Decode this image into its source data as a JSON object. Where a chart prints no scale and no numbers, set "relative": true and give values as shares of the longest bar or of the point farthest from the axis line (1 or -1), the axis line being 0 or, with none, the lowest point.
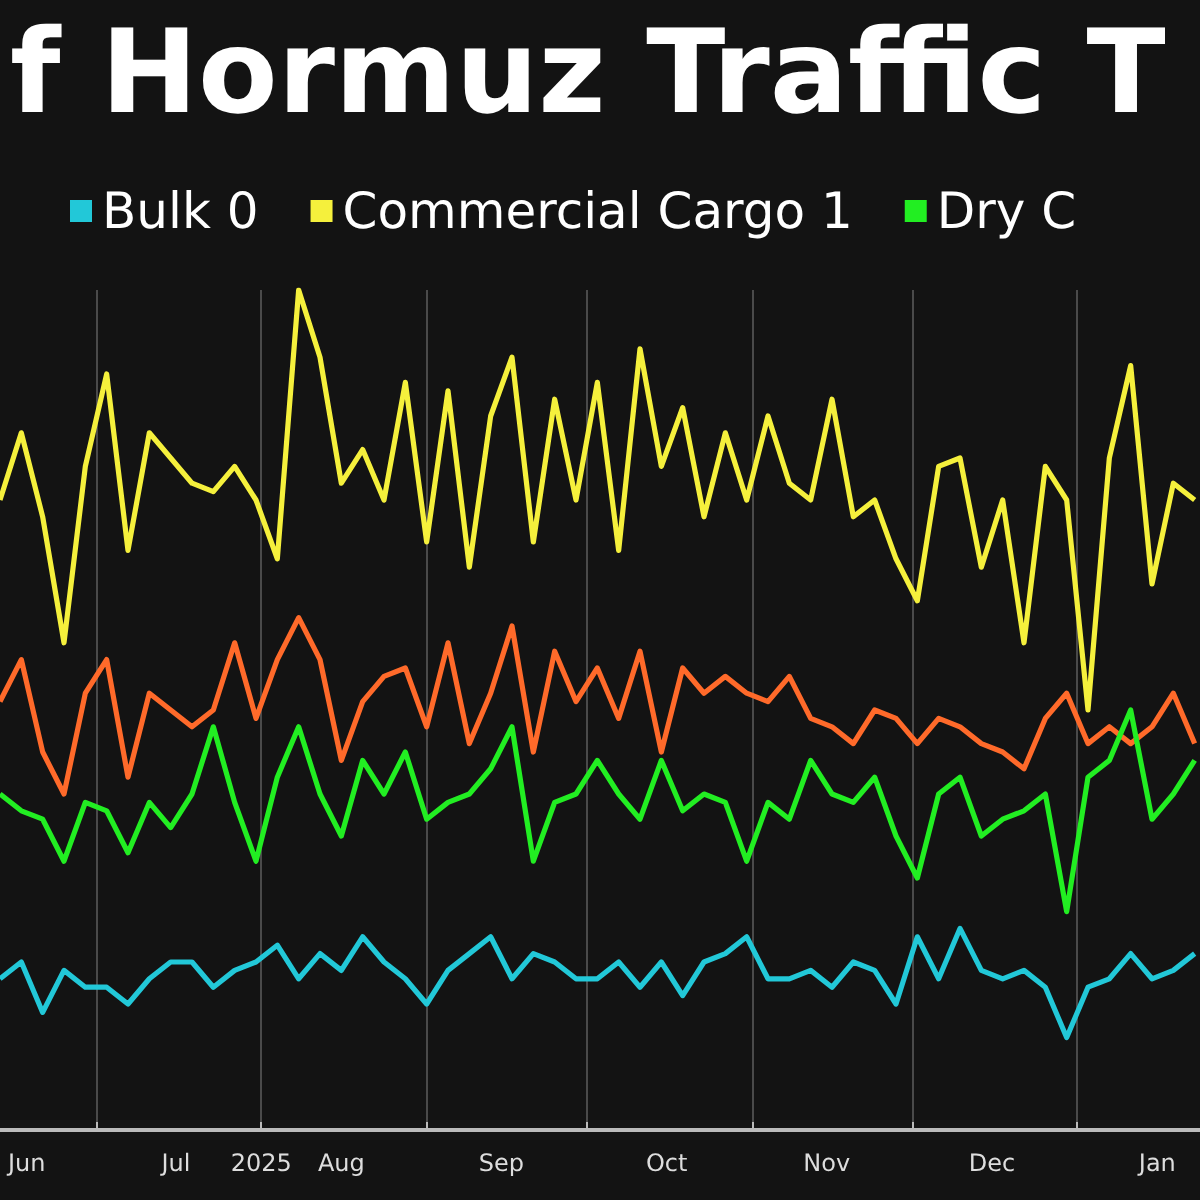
{
  "chart_data": {
    "type": "line",
    "title": "f Hormuz Traffic T",
    "relative": true,
    "grid": "x",
    "legend": "top",
    "x": [
      "2025-06-13",
      "2025-06-17",
      "2025-06-21",
      "2025-06-25",
      "2025-06-29",
      "2025-07-03",
      "2025-07-07",
      "2025-07-11",
      "2025-07-15",
      "2025-07-19",
      "2025-07-23",
      "2025-07-27",
      "2025-07-31",
      "2025-08-04",
      "2025-08-08",
      "2025-08-12",
      "2025-08-16",
      "2025-08-20",
      "2025-08-24",
      "2025-08-28",
      "2025-09-01",
      "2025-09-05",
      "2025-09-09",
      "2025-09-13",
      "2025-09-17",
      "2025-09-21",
      "2025-09-25",
      "2025-09-29",
      "2025-10-03",
      "2025-10-07",
      "2025-10-11",
      "2025-10-15",
      "2025-10-19",
      "2025-10-23",
      "2025-10-27",
      "2025-10-31",
      "2025-11-04",
      "2025-11-08",
      "2025-11-12",
      "2025-11-16",
      "2025-11-20",
      "2025-11-24",
      "2025-11-28",
      "2025-12-02",
      "2025-12-06",
      "2025-12-10",
      "2025-12-14",
      "2025-12-18",
      "2025-12-22",
      "2025-12-26",
      "2025-12-30",
      "2026-01-03",
      "2026-01-07",
      "2026-01-11",
      "2026-01-15",
      "2026-01-19",
      "2026-01-23"
    ],
    "xlim": [
      "2025-06-13",
      "2026-01-24"
    ],
    "xticks": [
      {
        "value": "2025-06-18",
        "label": "Jun"
      },
      {
        "value": "2025-07-01",
        "label": null
      },
      {
        "value": "2025-07-16",
        "label": "Jul"
      },
      {
        "value": "2025-08-01",
        "label": "2025"
      },
      {
        "value": "2025-08-16",
        "label": "Aug"
      },
      {
        "value": "2025-09-01",
        "label": null
      },
      {
        "value": "2025-09-15",
        "label": "Sep"
      },
      {
        "value": "2025-10-01",
        "label": null
      },
      {
        "value": "2025-10-16",
        "label": "Oct"
      },
      {
        "value": "2025-11-01",
        "label": null
      },
      {
        "value": "2025-11-15",
        "label": "Nov"
      },
      {
        "value": "2025-12-01",
        "label": null
      },
      {
        "value": "2025-12-16",
        "label": "Dec"
      },
      {
        "value": "2026-01-01",
        "label": null
      },
      {
        "value": "2026-01-16",
        "label": "Jan"
      }
    ],
    "series": [
      {
        "color": "#ff6a2a",
        "values": [
          0.51,
          0.56,
          0.45,
          0.4,
          0.52,
          0.56,
          0.42,
          0.52,
          0.5,
          0.48,
          0.5,
          0.58,
          0.49,
          0.56,
          0.61,
          0.56,
          0.44,
          0.51,
          0.54,
          0.55,
          0.48,
          0.58,
          0.46,
          0.52,
          0.6,
          0.45,
          0.57,
          0.51,
          0.55,
          0.49,
          0.57,
          0.45,
          0.55,
          0.52,
          0.54,
          0.52,
          0.51,
          0.54,
          0.49,
          0.48,
          0.46,
          0.5,
          0.49,
          0.46,
          0.49,
          0.48,
          0.46,
          0.45,
          0.43,
          0.49,
          0.52,
          0.46,
          0.48,
          0.46,
          0.48,
          0.52,
          0.46
        ]
      },
      {
        "name": "Bulk 0",
        "color": "#22c8d8",
        "values": [
          0.18,
          0.2,
          0.14,
          0.19,
          0.17,
          0.17,
          0.15,
          0.18,
          0.2,
          0.2,
          0.17,
          0.19,
          0.2,
          0.22,
          0.18,
          0.21,
          0.19,
          0.23,
          0.2,
          0.18,
          0.15,
          0.19,
          0.21,
          0.23,
          0.18,
          0.21,
          0.2,
          0.18,
          0.18,
          0.2,
          0.17,
          0.2,
          0.16,
          0.2,
          0.21,
          0.23,
          0.18,
          0.18,
          0.19,
          0.17,
          0.2,
          0.19,
          0.15,
          0.23,
          0.18,
          0.24,
          0.19,
          0.18,
          0.19,
          0.17,
          0.11,
          0.17,
          0.18,
          0.21,
          0.18,
          0.19,
          0.21
        ]
      },
      {
        "name": "Commercial Cargo 1",
        "color": "#f5f03c",
        "values": [
          0.75,
          0.83,
          0.73,
          0.58,
          0.79,
          0.9,
          0.69,
          0.83,
          0.8,
          0.77,
          0.76,
          0.79,
          0.75,
          0.68,
          1,
          0.92,
          0.77,
          0.81,
          0.75,
          0.89,
          0.7,
          0.88,
          0.67,
          0.85,
          0.92,
          0.7,
          0.87,
          0.75,
          0.89,
          0.69,
          0.93,
          0.79,
          0.86,
          0.73,
          0.83,
          0.75,
          0.85,
          0.77,
          0.75,
          0.87,
          0.73,
          0.75,
          0.68,
          0.63,
          0.79,
          0.8,
          0.67,
          0.75,
          0.58,
          0.79,
          0.75,
          0.5,
          0.8,
          0.91,
          0.65,
          0.77,
          0.75
        ]
      },
      {
        "name": "Dry C",
        "color": "#22ee22",
        "values": [
          0.4,
          0.38,
          0.37,
          0.32,
          0.39,
          0.38,
          0.33,
          0.39,
          0.36,
          0.4,
          0.48,
          0.39,
          0.32,
          0.42,
          0.48,
          0.4,
          0.35,
          0.44,
          0.4,
          0.45,
          0.37,
          0.39,
          0.4,
          0.43,
          0.48,
          0.32,
          0.39,
          0.4,
          0.44,
          0.4,
          0.37,
          0.44,
          0.38,
          0.4,
          0.39,
          0.32,
          0.39,
          0.37,
          0.44,
          0.4,
          0.39,
          0.42,
          0.35,
          0.3,
          0.4,
          0.42,
          0.35,
          0.37,
          0.38,
          0.4,
          0.26,
          0.42,
          0.44,
          0.5,
          0.37,
          0.4,
          0.44
        ]
      }
    ]
  }
}
